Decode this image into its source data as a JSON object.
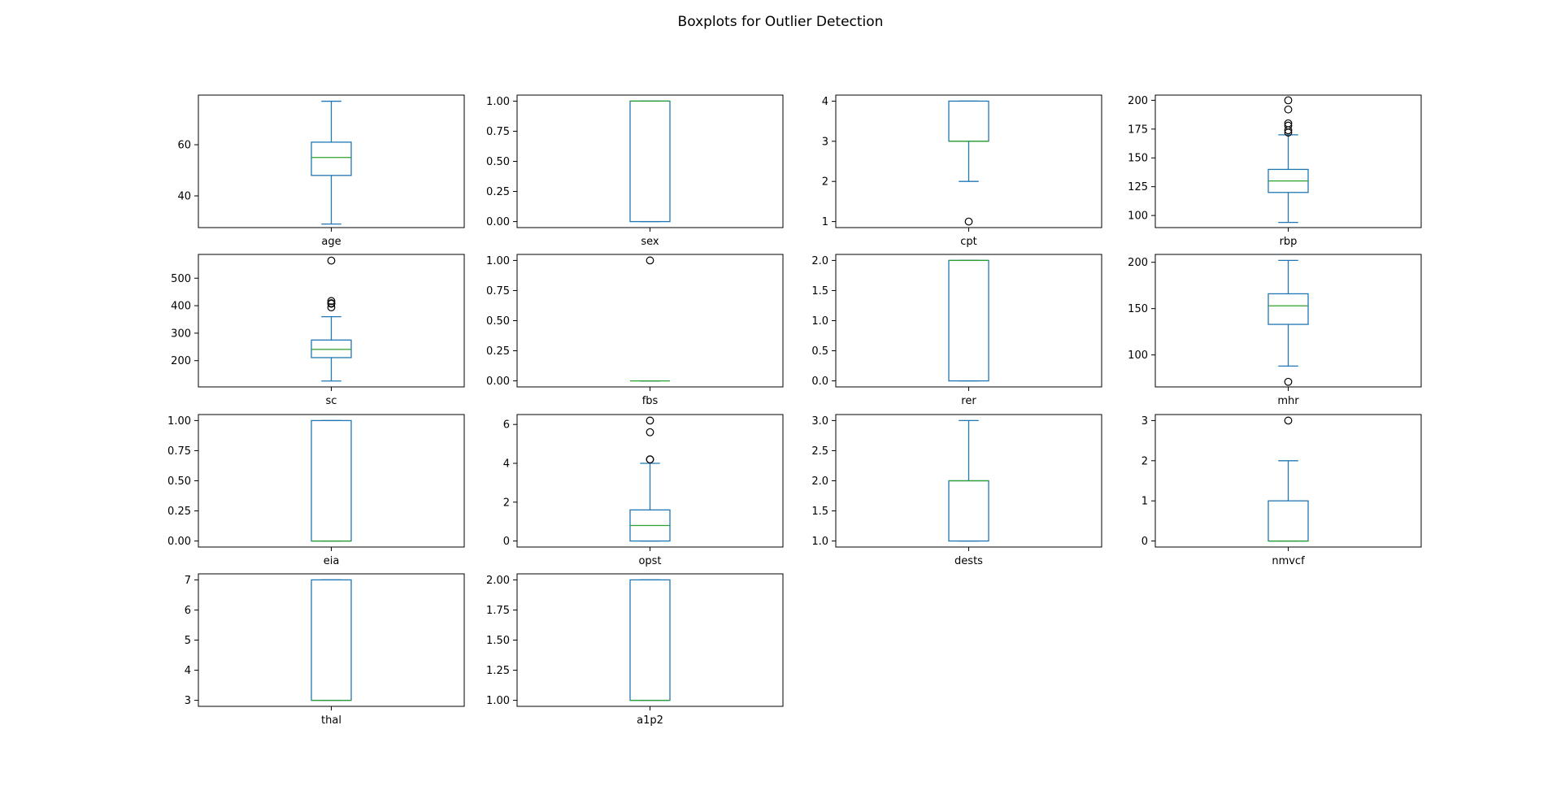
{
  "title": "Boxplots for Outlier Detection",
  "colors": {
    "box": "#1f77b4",
    "median": "#2ca02c",
    "flier": "#000000",
    "frame": "#000000"
  },
  "chart_data": [
    {
      "type": "box",
      "xlabel": "age",
      "ylim": [
        27.6,
        79.4
      ],
      "yticks": [
        40,
        60
      ],
      "ytick_labels": [
        "40",
        "60"
      ],
      "whisker_low": 29,
      "q1": 48,
      "median": 55,
      "q3": 61,
      "whisker_high": 77,
      "fliers": []
    },
    {
      "type": "box",
      "xlabel": "sex",
      "ylim": [
        -0.05,
        1.05
      ],
      "yticks": [
        0,
        0.25,
        0.5,
        0.75,
        1
      ],
      "ytick_labels": [
        "0.00",
        "0.25",
        "0.50",
        "0.75",
        "1.00"
      ],
      "whisker_low": 0,
      "q1": 0,
      "median": 1,
      "q3": 1,
      "whisker_high": 1,
      "fliers": []
    },
    {
      "type": "box",
      "xlabel": "cpt",
      "ylim": [
        0.85,
        4.15
      ],
      "yticks": [
        1,
        2,
        3,
        4
      ],
      "ytick_labels": [
        "1",
        "2",
        "3",
        "4"
      ],
      "whisker_low": 2,
      "q1": 3,
      "median": 3,
      "q3": 4,
      "whisker_high": 4,
      "fliers": [
        1
      ]
    },
    {
      "type": "box",
      "xlabel": "rbp",
      "ylim": [
        89.5,
        204.5
      ],
      "yticks": [
        100,
        125,
        150,
        175,
        200
      ],
      "ytick_labels": [
        "100",
        "125",
        "150",
        "175",
        "200"
      ],
      "whisker_low": 94,
      "q1": 120,
      "median": 130,
      "q3": 140,
      "whisker_high": 170,
      "fliers": [
        172,
        174,
        178,
        180,
        192,
        200
      ]
    },
    {
      "type": "box",
      "xlabel": "sc",
      "ylim": [
        104.5,
        586.5
      ],
      "yticks": [
        200,
        300,
        400,
        500
      ],
      "ytick_labels": [
        "200",
        "300",
        "400",
        "500"
      ],
      "whisker_low": 126,
      "q1": 211,
      "median": 241,
      "q3": 275,
      "whisker_high": 360,
      "fliers": [
        394,
        407,
        409,
        417,
        564
      ]
    },
    {
      "type": "box",
      "xlabel": "fbs",
      "ylim": [
        -0.05,
        1.05
      ],
      "yticks": [
        0,
        0.25,
        0.5,
        0.75,
        1
      ],
      "ytick_labels": [
        "0.00",
        "0.25",
        "0.50",
        "0.75",
        "1.00"
      ],
      "whisker_low": 0,
      "q1": 0,
      "median": 0,
      "q3": 0,
      "whisker_high": 0,
      "fliers": [
        1
      ]
    },
    {
      "type": "box",
      "xlabel": "rer",
      "ylim": [
        -0.1,
        2.1
      ],
      "yticks": [
        0,
        0.5,
        1,
        1.5,
        2
      ],
      "ytick_labels": [
        "0.0",
        "0.5",
        "1.0",
        "1.5",
        "2.0"
      ],
      "whisker_low": 0,
      "q1": 0,
      "median": 2,
      "q3": 2,
      "whisker_high": 2,
      "fliers": []
    },
    {
      "type": "box",
      "xlabel": "mhr",
      "ylim": [
        65.5,
        208.5
      ],
      "yticks": [
        100,
        150,
        200
      ],
      "ytick_labels": [
        "100",
        "150",
        "200"
      ],
      "whisker_low": 88,
      "q1": 133,
      "median": 153,
      "q3": 166,
      "whisker_high": 202,
      "fliers": [
        71
      ]
    },
    {
      "type": "box",
      "xlabel": "eia",
      "ylim": [
        -0.05,
        1.05
      ],
      "yticks": [
        0,
        0.25,
        0.5,
        0.75,
        1
      ],
      "ytick_labels": [
        "0.00",
        "0.25",
        "0.50",
        "0.75",
        "1.00"
      ],
      "whisker_low": 0,
      "q1": 0,
      "median": 0,
      "q3": 1,
      "whisker_high": 1,
      "fliers": []
    },
    {
      "type": "box",
      "xlabel": "opst",
      "ylim": [
        -0.31,
        6.51
      ],
      "yticks": [
        0,
        2,
        4,
        6
      ],
      "ytick_labels": [
        "0",
        "2",
        "4",
        "6"
      ],
      "whisker_low": 0,
      "q1": 0,
      "median": 0.8,
      "q3": 1.6,
      "whisker_high": 4.0,
      "fliers": [
        4.2,
        4.2,
        5.6,
        6.2
      ]
    },
    {
      "type": "box",
      "xlabel": "dests",
      "ylim": [
        0.9,
        3.1
      ],
      "yticks": [
        1,
        1.5,
        2,
        2.5,
        3
      ],
      "ytick_labels": [
        "1.0",
        "1.5",
        "2.0",
        "2.5",
        "3.0"
      ],
      "whisker_low": 1,
      "q1": 1,
      "median": 2,
      "q3": 2,
      "whisker_high": 3,
      "fliers": []
    },
    {
      "type": "box",
      "xlabel": "nmvcf",
      "ylim": [
        -0.15,
        3.15
      ],
      "yticks": [
        0,
        1,
        2,
        3
      ],
      "ytick_labels": [
        "0",
        "1",
        "2",
        "3"
      ],
      "whisker_low": 0,
      "q1": 0,
      "median": 0,
      "q3": 1,
      "whisker_high": 2,
      "fliers": [
        3
      ]
    },
    {
      "type": "box",
      "xlabel": "thal",
      "ylim": [
        2.8,
        7.2
      ],
      "yticks": [
        3,
        4,
        5,
        6,
        7
      ],
      "ytick_labels": [
        "3",
        "4",
        "5",
        "6",
        "7"
      ],
      "whisker_low": 3,
      "q1": 3,
      "median": 3,
      "q3": 7,
      "whisker_high": 7,
      "fliers": []
    },
    {
      "type": "box",
      "xlabel": "a1p2",
      "ylim": [
        0.95,
        2.05
      ],
      "yticks": [
        1,
        1.25,
        1.5,
        1.75,
        2
      ],
      "ytick_labels": [
        "1.00",
        "1.25",
        "1.50",
        "1.75",
        "2.00"
      ],
      "whisker_low": 1,
      "q1": 1,
      "median": 1,
      "q3": 2,
      "whisker_high": 2,
      "fliers": []
    }
  ]
}
